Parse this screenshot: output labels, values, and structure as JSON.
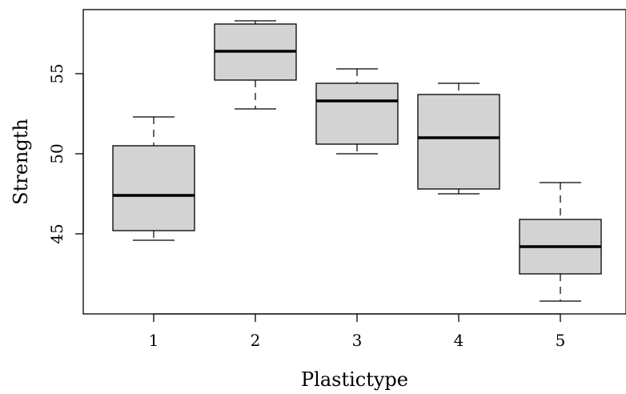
{
  "chart_data": {
    "type": "boxplot",
    "title": "",
    "xlabel": "Plastictype",
    "ylabel": "Strength",
    "categories": [
      "1",
      "2",
      "3",
      "4",
      "5"
    ],
    "boxes": [
      {
        "category": "1",
        "whisker_low": 44.6,
        "q1": 45.2,
        "median": 47.4,
        "q3": 50.5,
        "whisker_high": 52.3
      },
      {
        "category": "2",
        "whisker_low": 52.8,
        "q1": 54.6,
        "median": 56.4,
        "q3": 58.1,
        "whisker_high": 58.3
      },
      {
        "category": "3",
        "whisker_low": 50.0,
        "q1": 50.6,
        "median": 53.3,
        "q3": 54.4,
        "whisker_high": 55.3
      },
      {
        "category": "4",
        "whisker_low": 47.5,
        "q1": 47.8,
        "median": 51.0,
        "q3": 53.7,
        "whisker_high": 54.4
      },
      {
        "category": "5",
        "whisker_low": 40.8,
        "q1": 42.5,
        "median": 44.2,
        "q3": 45.9,
        "whisker_high": 48.2
      }
    ],
    "y_ticks": [
      "45",
      "50",
      "55"
    ],
    "ylim": [
      40.0,
      59.0
    ],
    "box_fill": "#d3d3d3",
    "grid": false,
    "legend": "none"
  }
}
